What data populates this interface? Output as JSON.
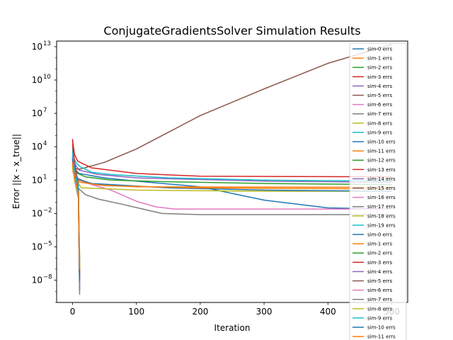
{
  "chart_data": {
    "type": "line",
    "title": "ConjugateGradientsSolver Simulation Results",
    "xlabel": "Iteration",
    "ylabel": "Error ||x - x_true||",
    "xlim": [
      -25,
      525
    ],
    "ylim_log10": [
      -10,
      13.5
    ],
    "yscale": "log",
    "grid": false,
    "legend_position": "right",
    "x_ticks": [
      {
        "value": 0,
        "label": "0"
      },
      {
        "value": 100,
        "label": "100"
      },
      {
        "value": 200,
        "label": "200"
      },
      {
        "value": 300,
        "label": "300"
      },
      {
        "value": 400,
        "label": "400"
      },
      {
        "value": 500,
        "label": "500"
      }
    ],
    "y_ticks": [
      {
        "exp": -8,
        "base": "10",
        "sup": "−8"
      },
      {
        "exp": -5,
        "base": "10",
        "sup": "−5"
      },
      {
        "exp": -2,
        "base": "10",
        "sup": "−2"
      },
      {
        "exp": 1,
        "base": "10",
        "sup": "1"
      },
      {
        "exp": 4,
        "base": "10",
        "sup": "4"
      },
      {
        "exp": 7,
        "base": "10",
        "sup": "7"
      },
      {
        "exp": 10,
        "base": "10",
        "sup": "10"
      },
      {
        "exp": 13,
        "base": "10",
        "sup": "13"
      }
    ],
    "series": [
      {
        "name": "sim-0 errs",
        "color": "#1f77b4",
        "x": [
          0,
          2,
          5,
          10,
          50,
          100,
          200,
          300,
          400,
          500
        ],
        "log10_y": [
          3.2,
          2.4,
          1.9,
          1.6,
          1.2,
          0.9,
          0.4,
          -0.8,
          -1.5,
          -1.6
        ]
      },
      {
        "name": "sim-1 errs",
        "color": "#ff7f0e",
        "x": [
          0,
          2,
          5,
          10,
          30,
          100,
          500
        ],
        "log10_y": [
          2.0,
          1.6,
          1.2,
          1.0,
          0.6,
          0.4,
          0.35
        ]
      },
      {
        "name": "sim-2 errs",
        "color": "#2ca02c",
        "x": [
          0,
          3,
          8,
          20,
          60,
          150,
          300,
          500
        ],
        "log10_y": [
          2.6,
          2.0,
          1.6,
          1.3,
          1.0,
          0.85,
          0.7,
          0.6
        ]
      },
      {
        "name": "sim-3 errs",
        "color": "#d62728",
        "x": [
          0,
          3,
          8,
          30,
          100,
          200,
          500
        ],
        "log10_y": [
          4.6,
          3.3,
          2.7,
          2.1,
          1.6,
          1.35,
          1.3
        ]
      },
      {
        "name": "sim-4 errs",
        "color": "#9467bd",
        "x": [
          0,
          4,
          10,
          40,
          100,
          300,
          500
        ],
        "log10_y": [
          3.3,
          2.4,
          1.9,
          1.5,
          1.2,
          0.9,
          0.8
        ]
      },
      {
        "name": "sim-5 errs",
        "color": "#8c564b",
        "x": [
          0,
          2,
          6,
          12,
          50,
          100,
          150,
          200,
          300,
          400,
          500
        ],
        "log10_y": [
          3.0,
          2.3,
          2.0,
          2.0,
          2.6,
          3.8,
          5.3,
          6.8,
          9.2,
          11.5,
          13.2
        ]
      },
      {
        "name": "sim-6 errs",
        "color": "#e377c2",
        "x": [
          0,
          3,
          10,
          30,
          60,
          100,
          130,
          160,
          500
        ],
        "log10_y": [
          2.4,
          1.6,
          1.1,
          0.6,
          0.1,
          -0.9,
          -1.4,
          -1.6,
          -1.6
        ]
      },
      {
        "name": "sim-7 errs",
        "color": "#7f7f7f",
        "x": [
          0,
          4,
          10,
          20,
          40,
          80,
          110,
          140,
          200,
          500
        ],
        "log10_y": [
          2.1,
          1.0,
          0.2,
          -0.3,
          -0.7,
          -1.2,
          -1.6,
          -2.0,
          -2.1,
          -2.1
        ]
      },
      {
        "name": "sim-8 errs",
        "color": "#bcbd22",
        "x": [
          0,
          3,
          7,
          10,
          14,
          20,
          100,
          300,
          500
        ],
        "log10_y": [
          2.5,
          1.8,
          1.2,
          0.6,
          0.3,
          0.3,
          0.1,
          0.0,
          0.0
        ]
      },
      {
        "name": "sim-9 errs",
        "color": "#17becf",
        "x": [
          0,
          2,
          6,
          12,
          30,
          60,
          150,
          300,
          500
        ],
        "log10_y": [
          3.4,
          3.0,
          2.5,
          2.2,
          1.7,
          1.5,
          1.2,
          1.0,
          0.9
        ]
      },
      {
        "name": "sim-10 errs",
        "color": "#1f77b4",
        "x": [
          0,
          3,
          8,
          30,
          150,
          300,
          500
        ],
        "log10_y": [
          2.2,
          1.5,
          1.1,
          0.7,
          0.3,
          0.1,
          0.0
        ]
      },
      {
        "name": "sim-11 errs",
        "color": "#ff7f0e",
        "x": [
          0,
          4,
          12,
          50,
          200,
          500
        ],
        "log10_y": [
          1.8,
          1.2,
          0.8,
          0.5,
          0.3,
          0.2
        ]
      },
      {
        "name": "sim-12 errs",
        "color": "#2ca02c",
        "x": [
          0,
          3,
          9,
          10,
          11
        ],
        "log10_y": [
          3.8,
          2.2,
          0.5,
          -3.0,
          -6.0
        ]
      },
      {
        "name": "sim-13 errs",
        "color": "#d62728",
        "x": [
          0,
          3,
          9,
          10,
          11
        ],
        "log10_y": [
          4.7,
          2.5,
          0.4,
          -4.0,
          -7.5
        ]
      },
      {
        "name": "sim-14 errs",
        "color": "#9467bd",
        "x": [
          0,
          3,
          9,
          10,
          11
        ],
        "log10_y": [
          3.6,
          2.0,
          0.2,
          -4.5,
          -8.5
        ]
      },
      {
        "name": "sim-15 errs",
        "color": "#8c564b",
        "x": [
          0,
          3,
          9,
          10,
          11
        ],
        "log10_y": [
          3.2,
          1.8,
          0.0,
          -3.5,
          -6.5
        ]
      },
      {
        "name": "sim-16 errs",
        "color": "#e377c2",
        "x": [
          0,
          3,
          9,
          10,
          11
        ],
        "log10_y": [
          2.8,
          1.5,
          -0.3,
          -4.0,
          -8.0
        ]
      },
      {
        "name": "sim-17 errs",
        "color": "#7f7f7f",
        "x": [
          0,
          3,
          9,
          10,
          11
        ],
        "log10_y": [
          3.0,
          1.2,
          -0.5,
          -5.0,
          -9.0
        ]
      },
      {
        "name": "sim-18 errs",
        "color": "#bcbd22",
        "x": [
          0,
          3,
          9,
          10,
          11
        ],
        "log10_y": [
          2.6,
          1.4,
          0.1,
          -3.0,
          -5.5
        ]
      },
      {
        "name": "sim-19 errs",
        "color": "#17becf",
        "x": [
          0,
          3,
          9,
          10,
          11
        ],
        "log10_y": [
          3.9,
          2.3,
          0.6,
          -3.2,
          -6.2
        ]
      },
      {
        "name": "sim-0 errs",
        "color": "#1f77b4",
        "x": [
          0,
          3,
          9,
          10,
          11
        ],
        "log10_y": [
          3.0,
          1.6,
          0.1,
          -3.8,
          -7.0
        ]
      },
      {
        "name": "sim-1 errs",
        "color": "#ff7f0e",
        "x": [
          0,
          3,
          9,
          10,
          11
        ],
        "log10_y": [
          2.4,
          1.3,
          -0.1,
          -3.6,
          -6.8
        ]
      },
      {
        "name": "sim-2 errs",
        "color": "#2ca02c",
        "x": [
          0,
          3,
          9,
          10,
          11
        ],
        "log10_y": [
          2.9,
          1.7,
          0.3,
          -4.2,
          -7.2
        ]
      },
      {
        "name": "sim-3 errs",
        "color": "#d62728",
        "x": [
          0,
          3,
          9,
          10,
          11
        ],
        "log10_y": [
          4.2,
          2.6,
          0.5,
          -3.9,
          -7.8
        ]
      },
      {
        "name": "sim-4 errs",
        "color": "#9467bd",
        "x": [
          0,
          3,
          9,
          10,
          11
        ],
        "log10_y": [
          3.1,
          1.5,
          0.0,
          -4.6,
          -8.8
        ]
      },
      {
        "name": "sim-5 errs",
        "color": "#8c564b",
        "x": [
          0,
          3,
          9,
          10,
          11
        ],
        "log10_y": [
          2.7,
          1.4,
          -0.2,
          -4.1,
          -7.6
        ]
      },
      {
        "name": "sim-6 errs",
        "color": "#e377c2",
        "x": [
          0,
          3,
          9,
          10,
          11
        ],
        "log10_y": [
          2.5,
          1.2,
          -0.4,
          -4.4,
          -8.3
        ]
      },
      {
        "name": "sim-7 errs",
        "color": "#7f7f7f",
        "x": [
          0,
          3,
          9,
          10,
          11
        ],
        "log10_y": [
          2.3,
          1.0,
          -0.6,
          -4.8,
          -9.3
        ]
      },
      {
        "name": "sim-8 errs",
        "color": "#bcbd22",
        "x": [
          0,
          3,
          9,
          10,
          11
        ],
        "log10_y": [
          2.2,
          1.1,
          -0.3,
          -3.4,
          -6.3
        ]
      },
      {
        "name": "sim-9 errs",
        "color": "#17becf",
        "x": [
          0,
          3,
          9,
          10,
          11
        ],
        "log10_y": [
          3.5,
          2.0,
          0.4,
          -3.3,
          -6.6
        ]
      },
      {
        "name": "sim-10 errs",
        "color": "#1f77b4",
        "x": [
          0,
          3,
          9,
          10,
          11
        ],
        "log10_y": [
          2.9,
          1.5,
          0.0,
          -4.3,
          -8.1
        ]
      },
      {
        "name": "sim-11 errs",
        "color": "#ff7f0e",
        "x": [
          0,
          3,
          9,
          10,
          11
        ],
        "log10_y": [
          2.6,
          1.3,
          -0.2,
          -3.7,
          -7.0
        ]
      }
    ]
  }
}
